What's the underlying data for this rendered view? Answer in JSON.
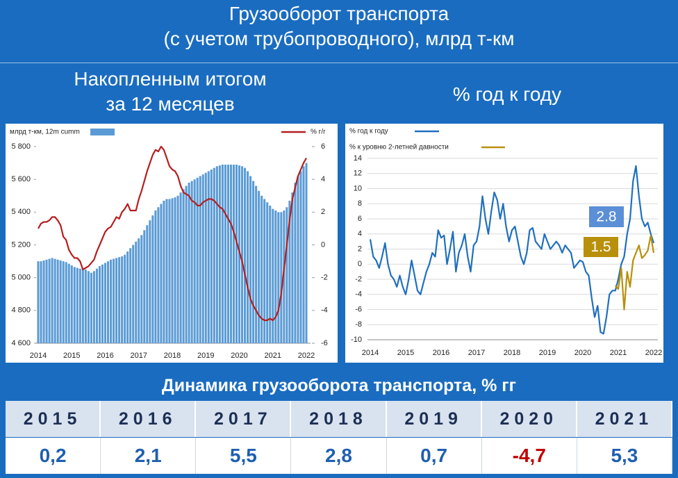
{
  "header": {
    "title_lines": [
      "Грузооборот транспорта",
      "(с учетом трубопроводного), млрд т-км"
    ],
    "left_subtitle_lines": [
      "Накопленным итогом",
      "за 12 месяцев"
    ],
    "right_subtitle": "% год к году"
  },
  "chart_data": [
    {
      "type": "bar_line",
      "categories": [
        "2014",
        null,
        null,
        null,
        null,
        null,
        null,
        null,
        null,
        null,
        null,
        null,
        "2015",
        null,
        null,
        null,
        null,
        null,
        null,
        null,
        null,
        null,
        null,
        null,
        "2016",
        null,
        null,
        null,
        null,
        null,
        null,
        null,
        null,
        null,
        null,
        null,
        "2017",
        null,
        null,
        null,
        null,
        null,
        null,
        null,
        null,
        null,
        null,
        null,
        "2018",
        null,
        null,
        null,
        null,
        null,
        null,
        null,
        null,
        null,
        null,
        null,
        "2019",
        null,
        null,
        null,
        null,
        null,
        null,
        null,
        null,
        null,
        null,
        null,
        "2020",
        null,
        null,
        null,
        null,
        null,
        null,
        null,
        null,
        null,
        null,
        null,
        "2021",
        null,
        null,
        null,
        null,
        null,
        null,
        null,
        null,
        null,
        null,
        null,
        "2022"
      ],
      "series": [
        {
          "name": "млрд т-км, 12m cumm",
          "type": "bar",
          "color": "#5b9bd5",
          "values": [
            5100,
            5100,
            5105,
            5110,
            5115,
            5120,
            5115,
            5110,
            5105,
            5100,
            5095,
            5085,
            5075,
            5065,
            5060,
            5055,
            5055,
            5050,
            5040,
            5030,
            5040,
            5055,
            5070,
            5080,
            5090,
            5100,
            5110,
            5115,
            5120,
            5125,
            5130,
            5140,
            5160,
            5180,
            5200,
            5220,
            5240,
            5260,
            5290,
            5320,
            5350,
            5380,
            5410,
            5430,
            5450,
            5470,
            5480,
            5480,
            5485,
            5490,
            5500,
            5520,
            5540,
            5560,
            5580,
            5590,
            5600,
            5610,
            5620,
            5630,
            5640,
            5650,
            5660,
            5670,
            5680,
            5685,
            5690,
            5690,
            5690,
            5690,
            5690,
            5690,
            5685,
            5680,
            5670,
            5650,
            5620,
            5590,
            5560,
            5530,
            5500,
            5480,
            5460,
            5440,
            5420,
            5410,
            5400,
            5400,
            5410,
            5430,
            5470,
            5520,
            5580,
            5620,
            5650,
            5680,
            5700
          ]
        },
        {
          "name": "% г/г",
          "type": "line",
          "axis": "y2",
          "color": "#b41e1e",
          "values": [
            1.0,
            1.3,
            1.4,
            1.4,
            1.5,
            1.7,
            1.7,
            1.5,
            1.2,
            0.5,
            0.3,
            -0.3,
            -0.6,
            -0.8,
            -0.8,
            -1.0,
            -1.5,
            -1.4,
            -1.3,
            -1.1,
            -0.9,
            -0.4,
            0.0,
            0.4,
            0.8,
            1.0,
            1.1,
            1.4,
            1.7,
            1.6,
            2.0,
            2.2,
            2.5,
            2.1,
            2.1,
            2.1,
            2.8,
            3.3,
            3.9,
            4.5,
            5.0,
            5.5,
            5.8,
            5.7,
            6.0,
            5.8,
            5.3,
            4.8,
            4.6,
            4.5,
            4.2,
            3.6,
            3.2,
            3.1,
            3.0,
            2.7,
            2.6,
            2.4,
            2.4,
            2.6,
            2.7,
            2.8,
            2.8,
            2.7,
            2.5,
            2.3,
            2.2,
            1.9,
            1.6,
            1.3,
            0.8,
            0.2,
            -0.4,
            -1.0,
            -1.8,
            -2.6,
            -3.3,
            -3.7,
            -4.0,
            -4.3,
            -4.5,
            -4.6,
            -4.6,
            -4.5,
            -4.6,
            -4.4,
            -4.0,
            -3.0,
            -1.5,
            0.0,
            1.5,
            2.8,
            3.5,
            4.2,
            4.6,
            5.0,
            5.3
          ]
        }
      ],
      "ylim": [
        4600,
        5800
      ],
      "yticks": [
        {
          "value": 4600,
          "label": "4 600"
        },
        {
          "value": 4800,
          "label": "4 800"
        },
        {
          "value": 5000,
          "label": "5 000"
        },
        {
          "value": 5200,
          "label": "5 200"
        },
        {
          "value": 5400,
          "label": "5 400"
        },
        {
          "value": 5600,
          "label": "5 600"
        },
        {
          "value": 5800,
          "label": "5 800"
        }
      ],
      "y2lim": [
        -6,
        6
      ],
      "y2ticks": [
        -6,
        -4,
        -2,
        0,
        2,
        4,
        6
      ],
      "grid": false
    },
    {
      "type": "line",
      "categories": [
        "2014",
        null,
        null,
        null,
        null,
        null,
        null,
        null,
        null,
        null,
        null,
        null,
        "2015",
        null,
        null,
        null,
        null,
        null,
        null,
        null,
        null,
        null,
        null,
        null,
        "2016",
        null,
        null,
        null,
        null,
        null,
        null,
        null,
        null,
        null,
        null,
        null,
        "2017",
        null,
        null,
        null,
        null,
        null,
        null,
        null,
        null,
        null,
        null,
        null,
        "2018",
        null,
        null,
        null,
        null,
        null,
        null,
        null,
        null,
        null,
        null,
        null,
        "2019",
        null,
        null,
        null,
        null,
        null,
        null,
        null,
        null,
        null,
        null,
        null,
        "2020",
        null,
        null,
        null,
        null,
        null,
        null,
        null,
        null,
        null,
        null,
        null,
        "2021",
        null,
        null,
        null,
        null,
        null,
        null,
        null,
        null,
        null,
        null,
        null,
        "2022"
      ],
      "series": [
        {
          "name": "% год к году",
          "color": "#1f6fbf",
          "values": [
            3.3,
            1.0,
            0.5,
            -0.5,
            1.0,
            2.8,
            0.0,
            -1.5,
            -2.0,
            -3.0,
            -1.5,
            -3.0,
            -4.0,
            -2.0,
            0.5,
            -1.5,
            -3.5,
            -4.0,
            -2.5,
            -1.0,
            0.0,
            1.5,
            1.0,
            4.5,
            3.5,
            3.8,
            0.0,
            2.0,
            4.3,
            -1.0,
            1.5,
            2.5,
            4.0,
            1.0,
            -1.0,
            2.5,
            3.0,
            5.0,
            9.0,
            6.0,
            4.0,
            7.0,
            9.5,
            8.5,
            6.0,
            8.0,
            5.0,
            3.0,
            4.5,
            5.0,
            3.0,
            1.0,
            0.0,
            1.5,
            4.5,
            4.8,
            3.0,
            2.5,
            2.0,
            4.0,
            3.0,
            2.0,
            2.5,
            3.0,
            2.5,
            1.5,
            2.5,
            2.0,
            1.5,
            -0.5,
            0.0,
            0.5,
            0.3,
            -1.0,
            -1.5,
            -4.5,
            -7.0,
            -5.5,
            -9.0,
            -9.2,
            -7.0,
            -4.0,
            -3.5,
            -3.5,
            -2.0,
            0.0,
            1.0,
            4.0,
            6.0,
            11.0,
            13.0,
            9.0,
            6.0,
            5.0,
            5.5,
            4.0,
            2.8
          ]
        },
        {
          "name": "% к уровню 2-летней давности",
          "color": "#b8900c",
          "values": [
            null,
            null,
            null,
            null,
            null,
            null,
            null,
            null,
            null,
            null,
            null,
            null,
            null,
            null,
            null,
            null,
            null,
            null,
            null,
            null,
            null,
            null,
            null,
            null,
            null,
            null,
            null,
            null,
            null,
            null,
            null,
            null,
            null,
            null,
            null,
            null,
            null,
            null,
            null,
            null,
            null,
            null,
            null,
            null,
            null,
            null,
            null,
            null,
            null,
            null,
            null,
            null,
            null,
            null,
            null,
            null,
            null,
            null,
            null,
            null,
            null,
            null,
            null,
            null,
            null,
            null,
            null,
            null,
            null,
            null,
            null,
            null,
            null,
            null,
            null,
            null,
            null,
            null,
            null,
            null,
            null,
            null,
            null,
            -2.8,
            -3.3,
            -0.5,
            -6.0,
            -1.0,
            -3.0,
            0.5,
            1.5,
            2.5,
            0.8,
            1.2,
            1.8,
            3.8,
            1.5
          ]
        }
      ],
      "ylim": [
        -10,
        14
      ],
      "yticks": [
        -10,
        -8,
        -6,
        -4,
        -2,
        0,
        2,
        4,
        6,
        8,
        10,
        12,
        14
      ],
      "grid": true,
      "annotations": [
        {
          "text": "2.8",
          "color": "#5b8fd6"
        },
        {
          "text": "1.5",
          "color": "#b8900c"
        }
      ]
    }
  ],
  "table": {
    "title": "Динамика грузооборота транспорта, % гг",
    "years": [
      "2015",
      "2016",
      "2017",
      "2018",
      "2019",
      "2020",
      "2021"
    ],
    "values": [
      "0,2",
      "2,1",
      "5,5",
      "2,8",
      "0,7",
      "-4,7",
      "5,3"
    ],
    "value_color": "#1f5fb0",
    "negative_color": "#c00000"
  }
}
